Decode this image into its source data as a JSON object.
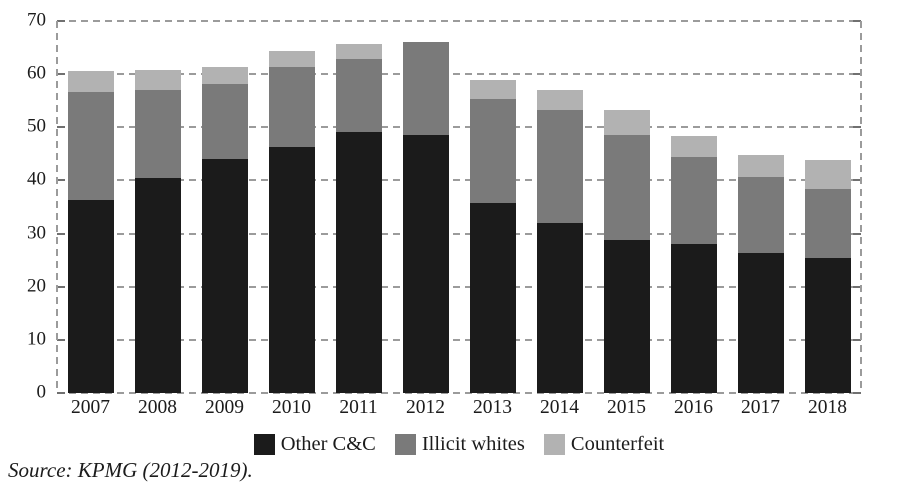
{
  "source_note": "Source: KPMG (2012-2019).",
  "colors": {
    "other_cc": "#1b1b1b",
    "illicit_whites": "#7a7a7a",
    "counterfeit": "#b2b2b2",
    "gridline": "#9b9b9b",
    "tick": "#707070",
    "text": "#1c1c1c",
    "background": "#ffffff"
  },
  "chart_data": {
    "type": "bar",
    "stacked": true,
    "title": "",
    "xlabel": "",
    "ylabel": "",
    "ylim": [
      0,
      70
    ],
    "yticks": [
      0,
      10,
      20,
      30,
      40,
      50,
      60,
      70
    ],
    "grid": "horizontal-dashed",
    "legend_position": "bottom-center",
    "categories": [
      "2007",
      "2008",
      "2009",
      "2010",
      "2011",
      "2012",
      "2013",
      "2014",
      "2015",
      "2016",
      "2017",
      "2018"
    ],
    "series": [
      {
        "name": "Other C&C",
        "color": "#1b1b1b",
        "values": [
          36.3,
          40.4,
          44.1,
          46.3,
          49.1,
          48.6,
          35.8,
          31.9,
          28.7,
          28.1,
          26.4,
          25.4
        ]
      },
      {
        "name": "Illicit whites",
        "color": "#7a7a7a",
        "values": [
          20.4,
          16.6,
          14.0,
          15.0,
          13.7,
          17.5,
          19.6,
          21.3,
          19.8,
          16.3,
          14.2,
          12.9
        ]
      },
      {
        "name": "Counterfeit",
        "color": "#b2b2b2",
        "values": [
          3.9,
          3.7,
          3.2,
          3.1,
          2.9,
          0,
          3.5,
          3.9,
          4.7,
          4.0,
          4.2,
          5.6
        ]
      }
    ]
  }
}
